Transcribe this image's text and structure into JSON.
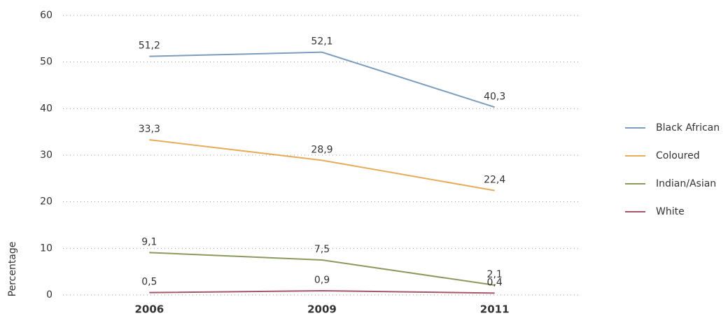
{
  "chart_data": {
    "type": "line",
    "y_label": "Percentage",
    "categories": [
      "2006",
      "2009",
      "2011"
    ],
    "series": [
      {
        "name": "Black African",
        "color": "#7d9dbd",
        "values": [
          51.2,
          52.1,
          40.3
        ],
        "value_labels": [
          "51,2",
          "52,1",
          "40,3"
        ]
      },
      {
        "name": "Coloured",
        "color": "#e6ac5c",
        "values": [
          33.3,
          28.9,
          22.4
        ],
        "value_labels": [
          "33,3",
          "28,9",
          "22,4"
        ]
      },
      {
        "name": "Indian/Asian",
        "color": "#8b995c",
        "values": [
          9.1,
          7.5,
          2.1
        ],
        "value_labels": [
          "9,1",
          "7,5",
          "2,1"
        ]
      },
      {
        "name": "White",
        "color": "#a5566a",
        "values": [
          0.5,
          0.9,
          0.4
        ],
        "value_labels": [
          "0,5",
          "0,9",
          "0,4"
        ]
      }
    ],
    "ylim": [
      0,
      60
    ],
    "yticks": [
      0,
      10,
      20,
      30,
      40,
      50,
      60
    ],
    "grid": true,
    "legend": "right"
  }
}
